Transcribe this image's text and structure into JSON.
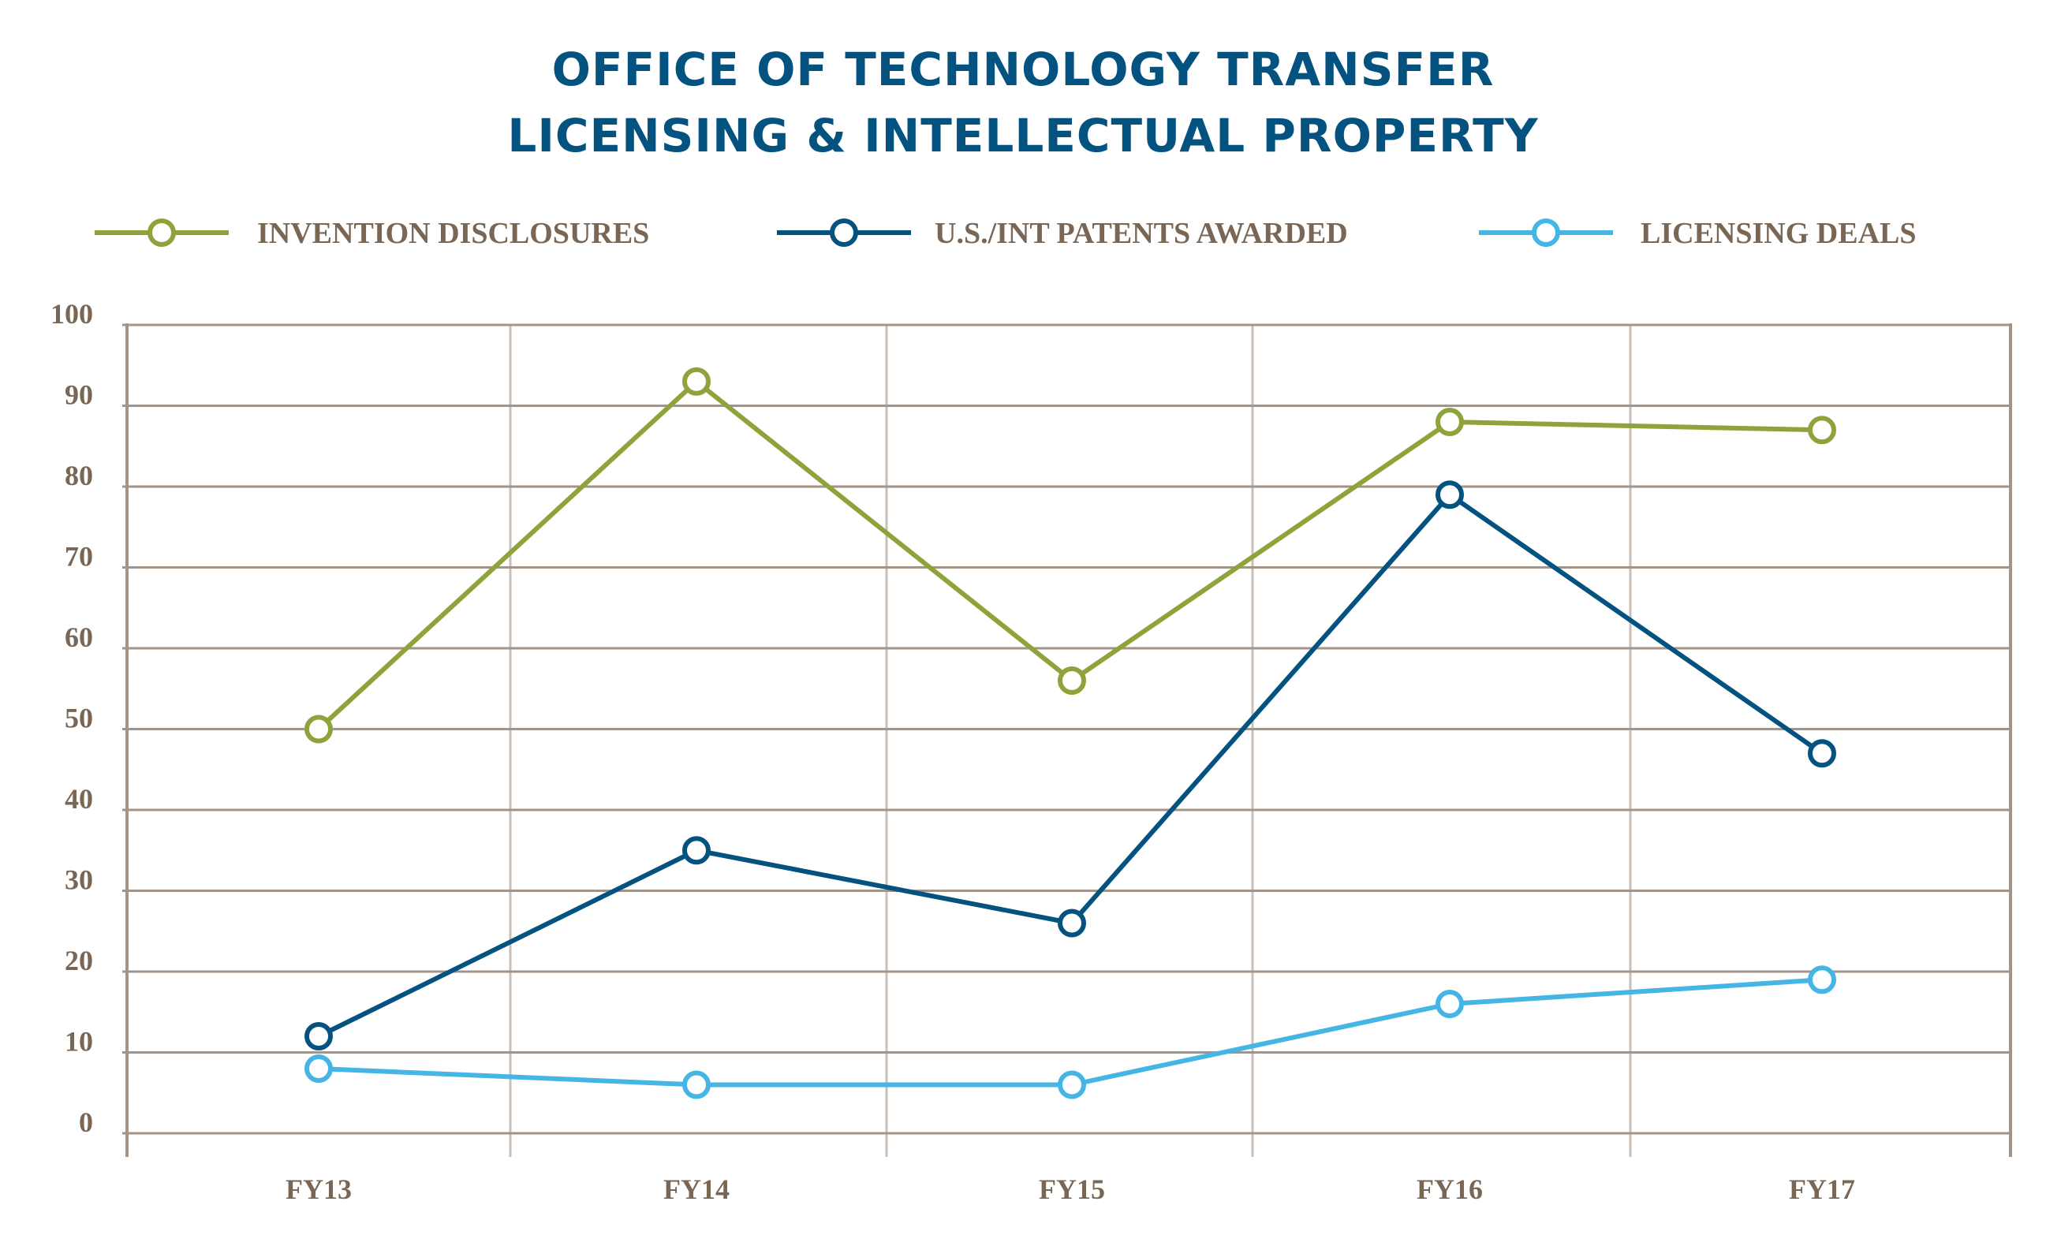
{
  "colors": {
    "title": "#03527f",
    "text": "#7a6654",
    "grid": "#a39487"
  },
  "chart_data": {
    "type": "line",
    "title": [
      "OFFICE OF TECHNOLOGY TRANSFER",
      "LICENSING & INTELLECTUAL PROPERTY"
    ],
    "xlabel": "",
    "ylabel": "",
    "categories": [
      "FY13",
      "FY14",
      "FY15",
      "FY16",
      "FY17"
    ],
    "ylim": [
      0,
      100
    ],
    "yticks": [
      0,
      10,
      20,
      30,
      40,
      50,
      60,
      70,
      80,
      90,
      100
    ],
    "grid": true,
    "legend_position": "top",
    "series": [
      {
        "name": "INVENTION DISCLOSURES",
        "color": "#8fa33b",
        "marker": "open-circle",
        "values": [
          50,
          93,
          56,
          88,
          87
        ]
      },
      {
        "name": "U.S./INT PATENTS AWARDED",
        "color": "#03527f",
        "marker": "open-circle",
        "values": [
          12,
          35,
          26,
          79,
          47
        ]
      },
      {
        "name": "LICENSING DEALS",
        "color": "#44b5e4",
        "marker": "open-circle",
        "values": [
          8,
          6,
          6,
          16,
          19
        ]
      }
    ]
  }
}
